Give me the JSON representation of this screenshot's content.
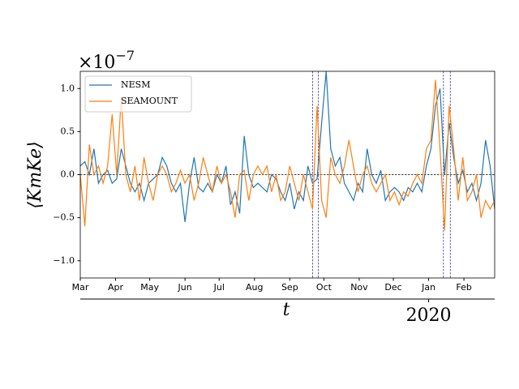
{
  "chart_data": {
    "type": "line",
    "y_label": "⟨KmKe⟩",
    "x_label": "t",
    "y_offset_label": {
      "base": "×10",
      "exponent": "−7"
    },
    "x": [
      0,
      4,
      8,
      12,
      16,
      20,
      24,
      28,
      32,
      36,
      40,
      44,
      48,
      52,
      56,
      60,
      64,
      68,
      72,
      76,
      80,
      84,
      88,
      92,
      96,
      100,
      104,
      108,
      112,
      116,
      120,
      124,
      128,
      132,
      136,
      140,
      144,
      148,
      152,
      156,
      160,
      164,
      168,
      172,
      176,
      180,
      184,
      188,
      192,
      196,
      200,
      204,
      208,
      212,
      216,
      220,
      224,
      228,
      232,
      236,
      240,
      244,
      248,
      252,
      256,
      260,
      264,
      268,
      272,
      276,
      280,
      284,
      288,
      292,
      296,
      300,
      304,
      308,
      312,
      316,
      320,
      324,
      328,
      332,
      336,
      340,
      344,
      348,
      352,
      356,
      360,
      364
    ],
    "series": [
      {
        "name": "NESM",
        "color": "#1f77b4",
        "values": [
          0.1,
          0.15,
          0.0,
          0.3,
          -0.1,
          0.0,
          0.05,
          -0.1,
          -0.05,
          0.3,
          0.1,
          -0.1,
          -0.2,
          -0.1,
          -0.3,
          -0.1,
          -0.05,
          0.0,
          0.2,
          0.1,
          -0.1,
          -0.2,
          -0.1,
          -0.55,
          -0.1,
          0.2,
          -0.15,
          -0.2,
          -0.1,
          -0.2,
          0.0,
          -0.1,
          0.1,
          -0.35,
          -0.2,
          -0.45,
          0.45,
          0.0,
          -0.15,
          -0.1,
          -0.15,
          -0.2,
          0.0,
          -0.05,
          -0.2,
          -0.3,
          -0.1,
          -0.4,
          -0.2,
          -0.3,
          0.1,
          -0.1,
          -0.05,
          0.6,
          1.2,
          0.3,
          0.1,
          0.2,
          -0.1,
          -0.2,
          -0.3,
          -0.1,
          -0.2,
          0.3,
          0.0,
          -0.1,
          0.05,
          -0.3,
          -0.2,
          -0.15,
          -0.2,
          -0.3,
          -0.15,
          -0.2,
          -0.1,
          -0.2,
          0.1,
          0.3,
          0.8,
          1.0,
          0.0,
          0.6,
          0.2,
          -0.1,
          0.05,
          -0.2,
          -0.1,
          -0.3,
          -0.1,
          0.4,
          0.1,
          -0.4
        ]
      },
      {
        "name": "SEAMOUNT",
        "color": "#ff7f0e",
        "values": [
          0.0,
          -0.6,
          0.35,
          0.0,
          0.1,
          -0.1,
          0.1,
          0.7,
          0.0,
          0.9,
          0.0,
          -0.2,
          0.1,
          -0.3,
          0.2,
          -0.1,
          -0.3,
          0.0,
          0.1,
          0.0,
          -0.2,
          -0.1,
          0.05,
          -0.1,
          0.0,
          -0.3,
          -0.1,
          0.2,
          0.0,
          -0.2,
          0.1,
          -0.1,
          0.0,
          -0.2,
          -0.5,
          0.0,
          0.05,
          -0.3,
          0.0,
          0.1,
          0.0,
          0.1,
          -0.2,
          0.0,
          -0.3,
          -0.2,
          0.1,
          -0.1,
          -0.3,
          0.0,
          -0.2,
          -0.4,
          0.8,
          -0.3,
          -0.5,
          0.2,
          0.0,
          -0.1,
          0.1,
          0.4,
          0.1,
          -0.2,
          0.0,
          0.1,
          -0.1,
          -0.2,
          -0.1,
          0.0,
          -0.3,
          -0.2,
          -0.35,
          -0.2,
          -0.25,
          -0.1,
          0.0,
          -0.1,
          0.3,
          0.4,
          1.1,
          0.3,
          -0.65,
          0.8,
          0.3,
          -0.3,
          0.2,
          -0.3,
          -0.2,
          0.0,
          -0.5,
          -0.3,
          -0.4,
          -0.3
        ]
      }
    ],
    "xlim": [
      0,
      364
    ],
    "xticks": [
      {
        "value": 0,
        "label": "Mar"
      },
      {
        "value": 31,
        "label": "Apr"
      },
      {
        "value": 61,
        "label": "May"
      },
      {
        "value": 92,
        "label": "Jun"
      },
      {
        "value": 122,
        "label": "Jul"
      },
      {
        "value": 153,
        "label": "Aug"
      },
      {
        "value": 184,
        "label": "Sep"
      },
      {
        "value": 214,
        "label": "Oct"
      },
      {
        "value": 245,
        "label": "Nov"
      },
      {
        "value": 275,
        "label": "Dec"
      },
      {
        "value": 306,
        "label": "Jan"
      },
      {
        "value": 337,
        "label": "Feb"
      }
    ],
    "secondary_xticks": [
      {
        "value": 306,
        "label": "2020"
      }
    ],
    "ylim": [
      -1.2,
      1.2
    ],
    "yticks": [
      {
        "value": -1.0,
        "label": "−1.0"
      },
      {
        "value": -0.5,
        "label": "−0.5"
      },
      {
        "value": 0.0,
        "label": "0.0"
      },
      {
        "value": 0.5,
        "label": "0.5"
      },
      {
        "value": 1.0,
        "label": "1.0"
      }
    ],
    "hline": 0,
    "vlines": [
      204,
      209,
      319,
      325
    ],
    "vline_color": "#1a1a8c",
    "legend": "upper left"
  }
}
